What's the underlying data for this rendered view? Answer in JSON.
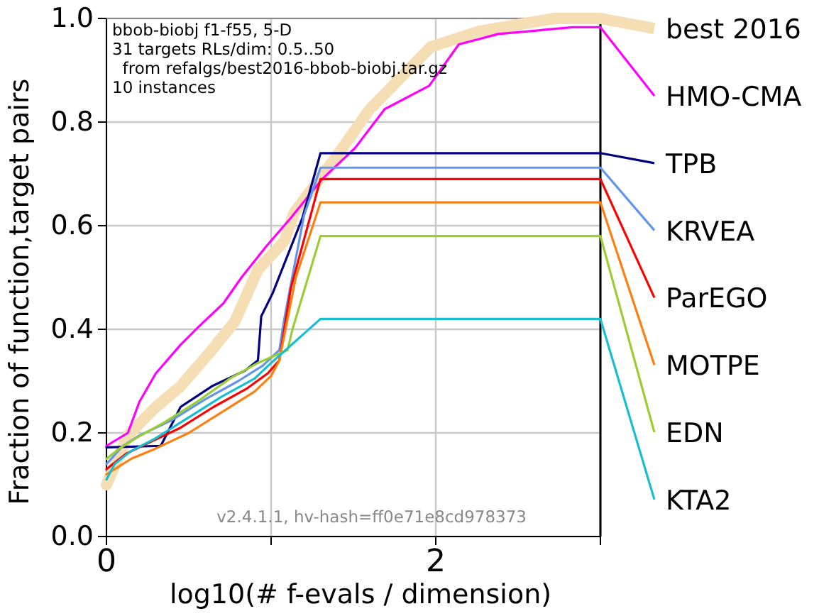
{
  "chart_data": {
    "type": "line",
    "xlabel": "log10(# f-evals / dimension)",
    "ylabel": "Fraction of function,target pairs",
    "annotations": [
      "bbob-biobj f1-f55, 5-D",
      "31 targets RLs/dim: 0.5..50",
      "  from refalgs/best2016-bbob-biobj.tar.gz",
      "10 instances",
      "v2.4.1.1, hv-hash=ff0e71e8cd978373"
    ],
    "xlim": [
      0,
      3
    ],
    "ylim": [
      0,
      1
    ],
    "xticks": [
      0,
      {
        "value": 1,
        "label": null
      },
      2,
      {
        "value": 3,
        "label": null
      }
    ],
    "yticks": [
      {
        "value": 0,
        "label": "0.0"
      },
      {
        "value": 0.2,
        "label": "0.2"
      },
      {
        "value": 0.4,
        "label": "0.4"
      },
      {
        "value": 0.6,
        "label": "0.6"
      },
      {
        "value": 0.8,
        "label": "0.8"
      },
      {
        "value": 1,
        "label": "1.0"
      }
    ],
    "grid": true,
    "legend": "right",
    "series": [
      {
        "name": "best 2016",
        "color": "#f5deb3",
        "x": [
          0,
          0.13,
          0.3,
          0.45,
          0.64,
          0.78,
          0.92,
          1.08,
          1.14,
          1.4,
          1.6,
          1.8,
          1.97,
          2.26,
          2.72,
          3
        ],
        "values": [
          0.1,
          0.195,
          0.25,
          0.29,
          0.36,
          0.415,
          0.515,
          0.57,
          0.625,
          0.735,
          0.825,
          0.89,
          0.945,
          0.975,
          1.0,
          1.0
        ]
      },
      {
        "name": "HMO-CMA",
        "color": "#ff00ff",
        "x": [
          0,
          0.13,
          0.2,
          0.3,
          0.45,
          0.56,
          0.71,
          0.82,
          0.97,
          1.12,
          1.31,
          1.51,
          1.69,
          1.96,
          2.14,
          2.38,
          2.83,
          3
        ],
        "values": [
          0.175,
          0.2,
          0.26,
          0.315,
          0.37,
          0.405,
          0.45,
          0.5,
          0.56,
          0.615,
          0.69,
          0.75,
          0.825,
          0.87,
          0.95,
          0.97,
          0.983,
          0.983
        ]
      },
      {
        "name": "TPB",
        "color": "#000080",
        "x": [
          0,
          0.33,
          0.45,
          0.64,
          0.84,
          0.92,
          0.94,
          1.01,
          1.19,
          1.3,
          3
        ],
        "values": [
          0.172,
          0.175,
          0.25,
          0.29,
          0.32,
          0.34,
          0.425,
          0.47,
          0.615,
          0.74,
          0.74
        ]
      },
      {
        "name": "KRVEA",
        "color": "#6495ed",
        "x": [
          0,
          0.1,
          0.2,
          0.4,
          0.6,
          0.8,
          0.95,
          1.05,
          1.08,
          1.2,
          1.3,
          3
        ],
        "values": [
          0.14,
          0.175,
          0.195,
          0.225,
          0.265,
          0.3,
          0.33,
          0.36,
          0.42,
          0.62,
          0.712,
          0.712
        ]
      },
      {
        "name": "ParEGO",
        "color": "#ff0000",
        "x": [
          0,
          0.12,
          0.25,
          0.45,
          0.65,
          0.85,
          0.98,
          1.05,
          1.12,
          1.3,
          3
        ],
        "values": [
          0.13,
          0.16,
          0.18,
          0.21,
          0.25,
          0.285,
          0.315,
          0.34,
          0.48,
          0.69,
          0.69
        ]
      },
      {
        "name": "MOTPE",
        "color": "#ff7f0e",
        "x": [
          0,
          0.15,
          0.3,
          0.5,
          0.7,
          0.9,
          1.0,
          1.05,
          1.15,
          1.3,
          3
        ],
        "values": [
          0.12,
          0.15,
          0.17,
          0.2,
          0.24,
          0.28,
          0.31,
          0.34,
          0.5,
          0.645,
          0.645
        ]
      },
      {
        "name": "EDN",
        "color": "#9acd32",
        "x": [
          0,
          0.08,
          0.18,
          0.35,
          0.55,
          0.75,
          0.92,
          1.1,
          1.13,
          1.3,
          3
        ],
        "values": [
          0.15,
          0.17,
          0.19,
          0.22,
          0.26,
          0.305,
          0.335,
          0.36,
          0.4,
          0.58,
          0.58
        ]
      },
      {
        "name": "KTA2",
        "color": "#17becf",
        "x": [
          0,
          0.05,
          0.15,
          0.3,
          0.5,
          0.7,
          0.9,
          1.0,
          1.3,
          3
        ],
        "values": [
          0.11,
          0.14,
          0.165,
          0.19,
          0.23,
          0.27,
          0.305,
          0.335,
          0.42,
          0.42
        ]
      }
    ]
  }
}
